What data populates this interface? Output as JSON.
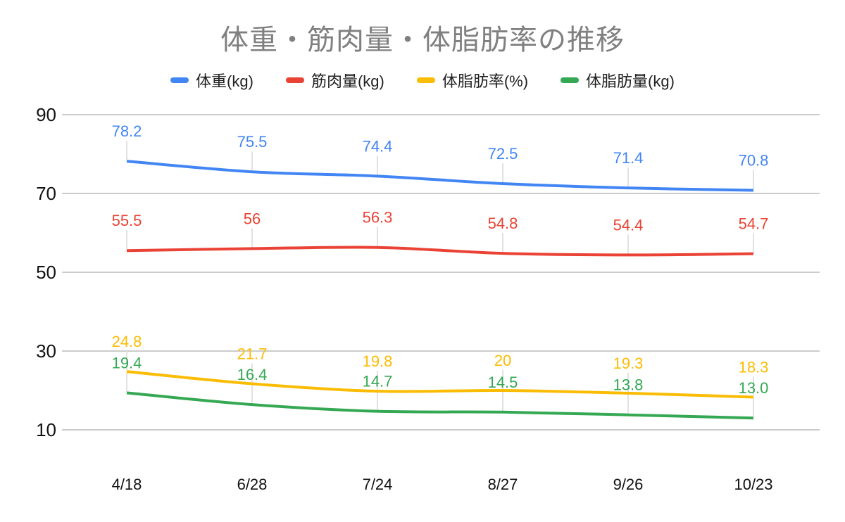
{
  "page": {
    "background": "#ffffff"
  },
  "chart_data": {
    "type": "line",
    "title": "体重・筋肉量・体脂肪率の推移",
    "legend_position": "top",
    "grid": "horizontal",
    "x_categories": [
      "4/18",
      "6/28",
      "7/24",
      "8/27",
      "9/26",
      "10/23"
    ],
    "y_ticks": [
      90,
      70,
      50,
      30,
      10
    ],
    "y_range_shown": [
      10,
      90
    ],
    "series": [
      {
        "id": "weight",
        "name": "体重(kg)",
        "color": "#4285F4",
        "values": [
          78.2,
          75.5,
          74.4,
          72.5,
          71.4,
          70.8
        ],
        "labels": [
          "78.2",
          "75.5",
          "74.4",
          "72.5",
          "71.4",
          "70.8"
        ]
      },
      {
        "id": "muscle-mass",
        "name": "筋肉量(kg)",
        "color": "#EA4335",
        "values": [
          55.5,
          56,
          56.3,
          54.8,
          54.4,
          54.7
        ],
        "labels": [
          "55.5",
          "56",
          "56.3",
          "54.8",
          "54.4",
          "54.7"
        ]
      },
      {
        "id": "body-fat-percent",
        "name": "体脂肪率(%)",
        "color": "#FBBC04",
        "values": [
          24.8,
          21.7,
          19.8,
          20,
          19.3,
          18.3
        ],
        "labels": [
          "24.8",
          "21.7",
          "19.8",
          "20",
          "19.3",
          "18.3"
        ]
      },
      {
        "id": "body-fat-mass",
        "name": "体脂肪量(kg)",
        "color": "#34A853",
        "values": [
          19.4,
          16.4,
          14.7,
          14.5,
          13.8,
          13.0
        ],
        "labels": [
          "19.4",
          "16.4",
          "14.7",
          "14.5",
          "13.8",
          "13.0"
        ]
      }
    ],
    "colors": {
      "title": "#808080",
      "axis_text": "#111111",
      "gridline": "#cccccc",
      "leader_line": "#e2e2e2",
      "background": "#ffffff"
    }
  }
}
